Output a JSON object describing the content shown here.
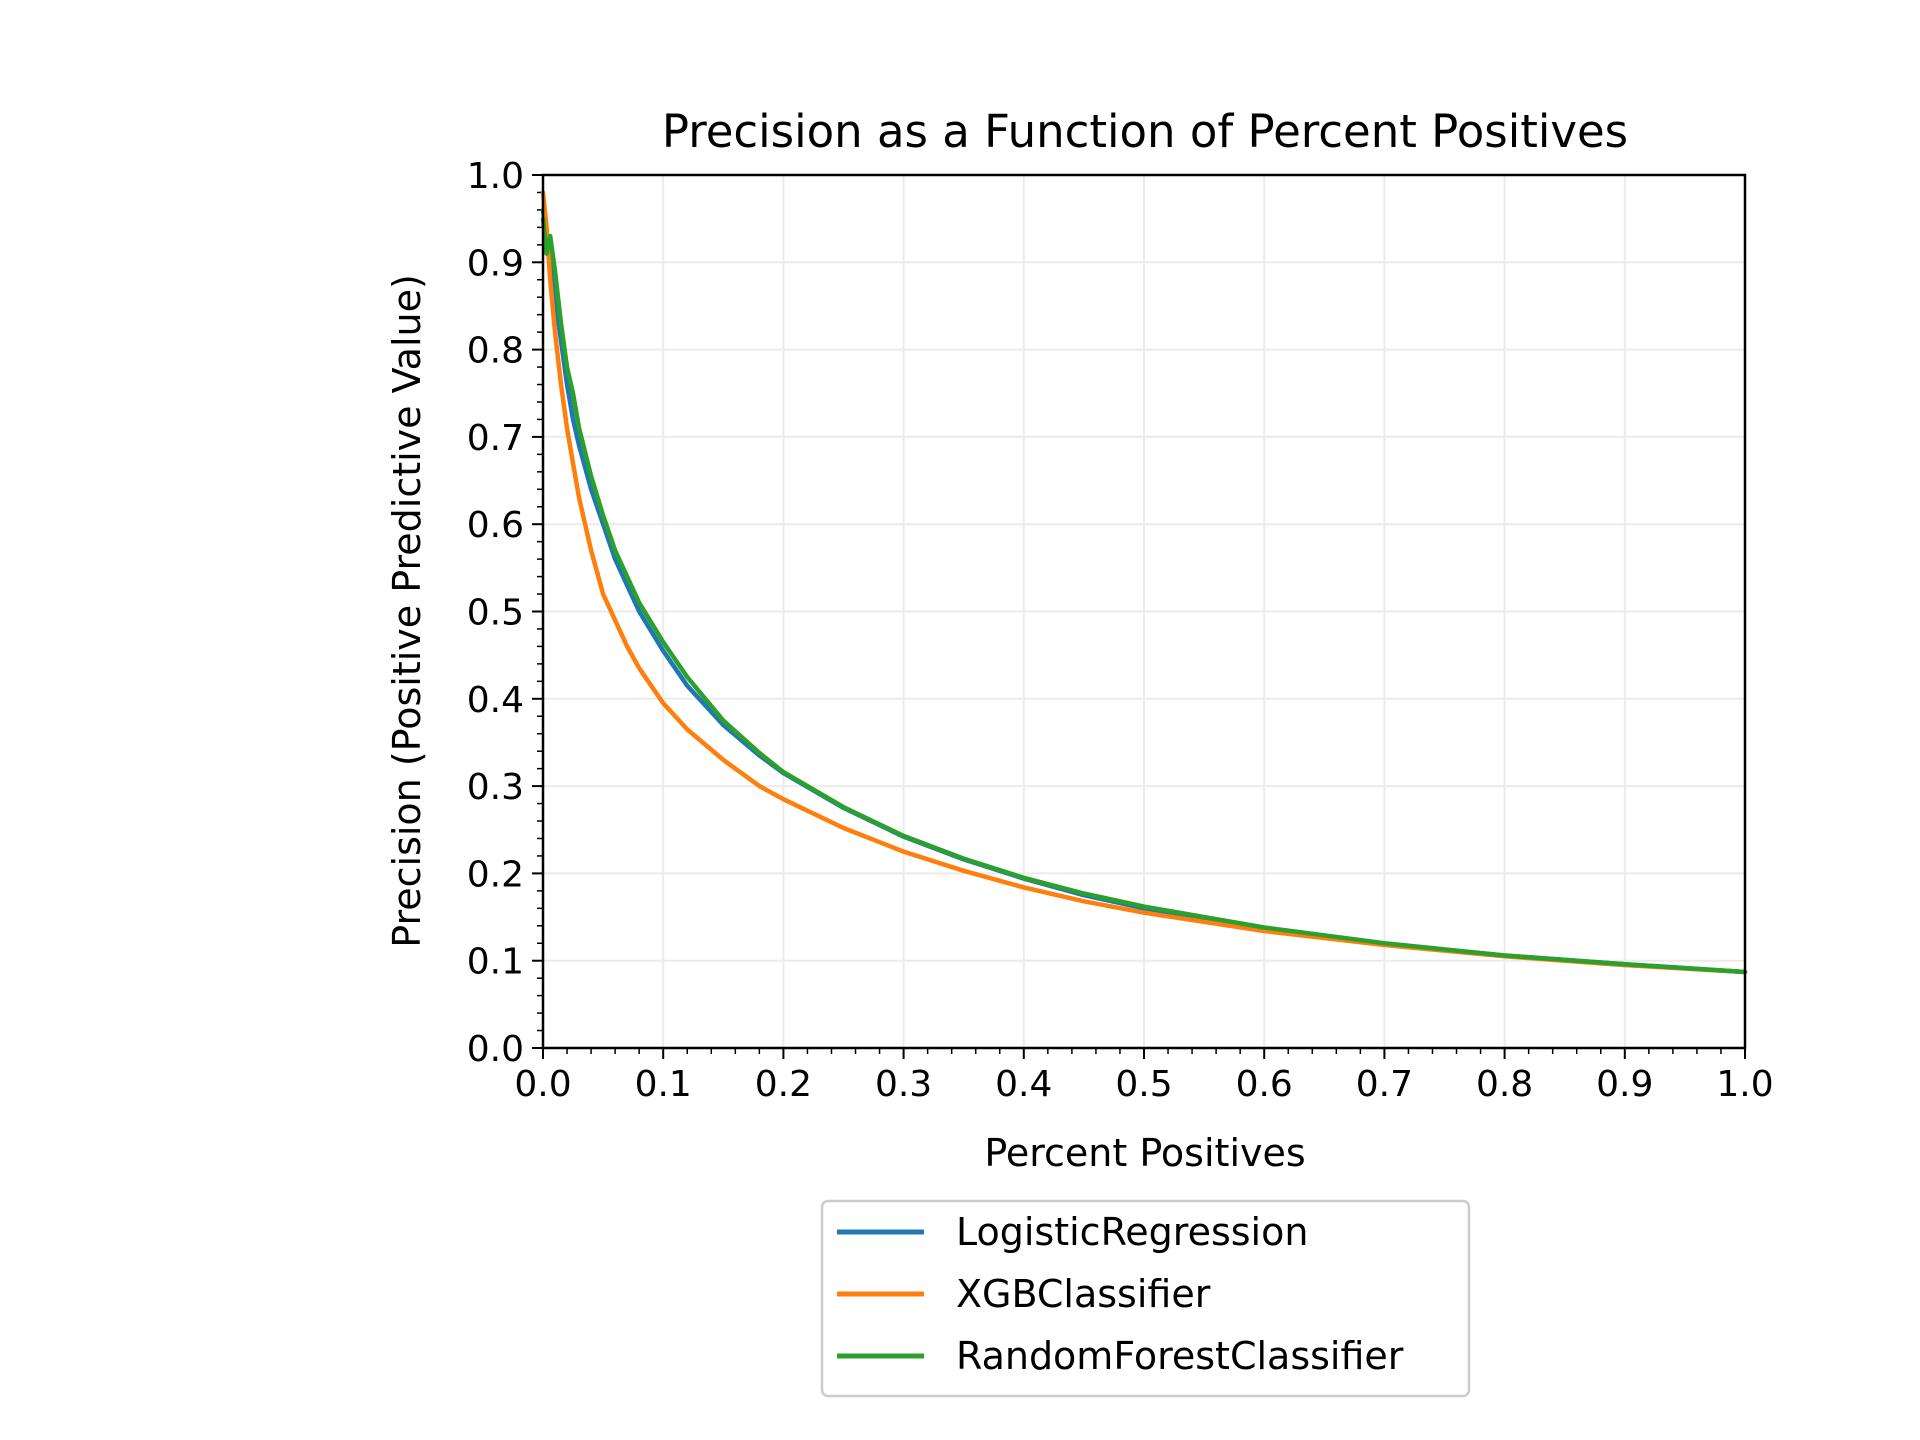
{
  "chart_data": {
    "type": "line",
    "title": "Precision as a Function of Percent Positives",
    "xlabel": "Percent Positives",
    "ylabel": "Precision (Positive Predictive Value)",
    "xlim": [
      0.0,
      1.0
    ],
    "ylim": [
      0.0,
      1.0
    ],
    "x_ticks": [
      "0.0",
      "0.1",
      "0.2",
      "0.3",
      "0.4",
      "0.5",
      "0.6",
      "0.7",
      "0.8",
      "0.9",
      "1.0"
    ],
    "y_ticks": [
      "0.0",
      "0.1",
      "0.2",
      "0.3",
      "0.4",
      "0.5",
      "0.6",
      "0.7",
      "0.8",
      "0.9",
      "1.0"
    ],
    "grid": true,
    "legend_position": "below plot, centered",
    "series": [
      {
        "name": "LogisticRegression",
        "color": "#1f77b4",
        "x": [
          0.0,
          0.003,
          0.006,
          0.01,
          0.015,
          0.02,
          0.025,
          0.03,
          0.04,
          0.05,
          0.06,
          0.07,
          0.08,
          0.1,
          0.12,
          0.15,
          0.18,
          0.2,
          0.25,
          0.3,
          0.35,
          0.4,
          0.45,
          0.5,
          0.6,
          0.7,
          0.8,
          0.9,
          1.0
        ],
        "y": [
          0.96,
          0.93,
          0.9,
          0.86,
          0.81,
          0.76,
          0.72,
          0.69,
          0.64,
          0.6,
          0.56,
          0.53,
          0.5,
          0.455,
          0.415,
          0.37,
          0.335,
          0.315,
          0.275,
          0.242,
          0.216,
          0.194,
          0.175,
          0.16,
          0.137,
          0.119,
          0.106,
          0.096,
          0.087
        ]
      },
      {
        "name": "XGBClassifier",
        "color": "#ff7f0e",
        "x": [
          0.0,
          0.003,
          0.006,
          0.01,
          0.015,
          0.02,
          0.025,
          0.03,
          0.04,
          0.05,
          0.06,
          0.07,
          0.08,
          0.1,
          0.12,
          0.15,
          0.18,
          0.2,
          0.25,
          0.3,
          0.35,
          0.4,
          0.45,
          0.5,
          0.6,
          0.7,
          0.8,
          0.9,
          1.0
        ],
        "y": [
          0.98,
          0.94,
          0.88,
          0.82,
          0.76,
          0.71,
          0.67,
          0.63,
          0.57,
          0.52,
          0.49,
          0.46,
          0.435,
          0.395,
          0.365,
          0.33,
          0.3,
          0.285,
          0.252,
          0.225,
          0.203,
          0.184,
          0.168,
          0.155,
          0.134,
          0.118,
          0.105,
          0.095,
          0.087
        ]
      },
      {
        "name": "RandomForestClassifier",
        "color": "#2ca02c",
        "x": [
          0.0,
          0.003,
          0.006,
          0.01,
          0.015,
          0.02,
          0.025,
          0.03,
          0.04,
          0.05,
          0.06,
          0.07,
          0.08,
          0.1,
          0.12,
          0.15,
          0.18,
          0.2,
          0.25,
          0.3,
          0.35,
          0.4,
          0.45,
          0.5,
          0.6,
          0.7,
          0.8,
          0.9,
          1.0
        ],
        "y": [
          0.95,
          0.91,
          0.93,
          0.89,
          0.83,
          0.78,
          0.75,
          0.71,
          0.655,
          0.61,
          0.57,
          0.54,
          0.51,
          0.465,
          0.425,
          0.375,
          0.338,
          0.316,
          0.276,
          0.243,
          0.217,
          0.195,
          0.177,
          0.162,
          0.138,
          0.12,
          0.106,
          0.096,
          0.087
        ]
      }
    ]
  }
}
